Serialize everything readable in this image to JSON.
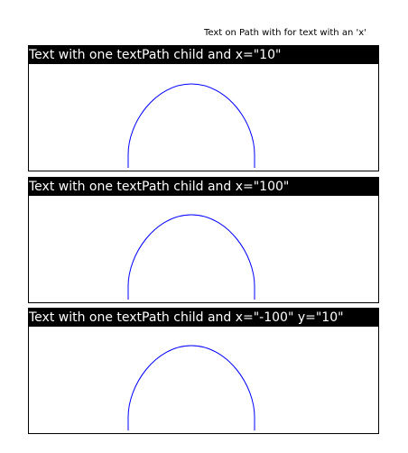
{
  "page": {
    "title": "Text on Path with for text with an 'x'"
  },
  "panels": [
    {
      "header": "Text with one textPath child and x=\"10\""
    },
    {
      "header": "Text with one textPath child and x=\"100\""
    },
    {
      "header": "Text with one textPath child and x=\"-100\" y=\"10\""
    }
  ],
  "colors": {
    "path_stroke": "#0000ff",
    "header_background": "#000000",
    "header_text": "#ffffff",
    "border": "#000000"
  }
}
